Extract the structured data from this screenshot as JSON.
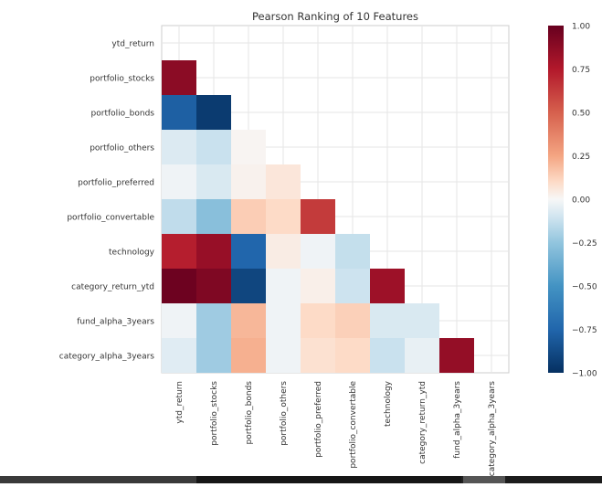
{
  "chart_data": {
    "type": "heatmap",
    "title": "Pearson Ranking of 10 Features",
    "features": [
      "ytd_return",
      "portfolio_stocks",
      "portfolio_bonds",
      "portfolio_others",
      "portfolio_preferred",
      "portfolio_convertable",
      "technology",
      "category_return_ytd",
      "fund_alpha_3years",
      "category_alpha_3years"
    ],
    "matrix": [
      [],
      [
        0.88
      ],
      [
        -0.78,
        -0.95
      ],
      [
        -0.07,
        -0.12,
        0.01
      ],
      [
        -0.02,
        -0.08,
        0.02,
        0.06
      ],
      [
        -0.14,
        -0.28,
        0.14,
        0.1,
        0.63
      ],
      [
        0.73,
        0.84,
        -0.75,
        0.04,
        -0.02,
        -0.13
      ],
      [
        0.98,
        0.92,
        -0.9,
        -0.02,
        0.03,
        -0.11,
        0.82
      ],
      [
        -0.02,
        -0.22,
        0.2,
        -0.02,
        0.1,
        0.13,
        -0.08,
        -0.08
      ],
      [
        -0.06,
        -0.22,
        0.22,
        -0.02,
        0.08,
        0.1,
        -0.12,
        -0.04,
        0.85
      ]
    ],
    "colorbar": {
      "vmin": -1.0,
      "vmax": 1.0,
      "tick_values": [
        1.0,
        0.75,
        0.5,
        0.25,
        0.0,
        -0.25,
        -0.5,
        -0.75,
        -1.0
      ],
      "tick_labels": [
        "1.00",
        "0.75",
        "0.50",
        "0.25",
        "0.00",
        "−0.25",
        "−0.50",
        "−0.75",
        "−1.00"
      ],
      "colormap": "RdBu_r"
    },
    "grid": true
  }
}
